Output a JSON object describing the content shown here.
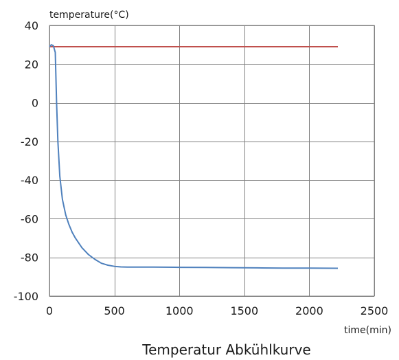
{
  "chart_data": {
    "type": "line",
    "title": "Temperatur Abkühlkurve",
    "ylabel": "temperature(°C)",
    "xlabel": "time(min)",
    "xlim": [
      0,
      2500
    ],
    "ylim": [
      -100,
      40
    ],
    "xticks": [
      0,
      500,
      1000,
      1500,
      2000,
      2500
    ],
    "yticks": [
      40,
      20,
      0,
      -20,
      -40,
      -60,
      -80,
      -100
    ],
    "grid": true,
    "series": [
      {
        "color": "#c0504d",
        "x": [
          0,
          100,
          200,
          300,
          400,
          500,
          600,
          700,
          800,
          900,
          1000,
          1100,
          1200,
          1300,
          1400,
          1500,
          1600,
          1700,
          1800,
          1900,
          2000,
          2100,
          2220
        ],
        "y": [
          29,
          29,
          29,
          29,
          29,
          29,
          29,
          29,
          29,
          29,
          29,
          29,
          29,
          29,
          29,
          29,
          29,
          29,
          29,
          29,
          29,
          29,
          29
        ]
      },
      {
        "color": "#4f81bd",
        "x": [
          0,
          15,
          30,
          45,
          55,
          65,
          80,
          100,
          125,
          150,
          175,
          200,
          250,
          300,
          350,
          400,
          450,
          500,
          550,
          600,
          800,
          1000,
          1200,
          1400,
          1600,
          1800,
          2000,
          2220
        ],
        "y": [
          29,
          30,
          29.5,
          26,
          0,
          -20,
          -38,
          -50,
          -58,
          -63,
          -67,
          -70,
          -75,
          -78.5,
          -81,
          -83,
          -84,
          -84.6,
          -84.9,
          -85,
          -85,
          -85.1,
          -85.2,
          -85.3,
          -85.4,
          -85.5,
          -85.5,
          -85.6
        ]
      }
    ]
  }
}
